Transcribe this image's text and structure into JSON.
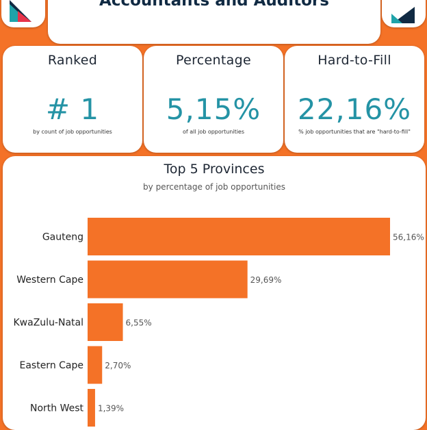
{
  "header": {
    "title": "Accountants and Auditors"
  },
  "stats": [
    {
      "label": "Ranked",
      "value": "# 1",
      "sub": "by count of job opportunities"
    },
    {
      "label": "Percentage",
      "value": "5,15%",
      "sub": "of all job opportunities"
    },
    {
      "label": "Hard-to-Fill",
      "value": "22,16%",
      "sub": "% job opportunities that are \"hard-to-fill\""
    }
  ],
  "colors": {
    "background": "#f47227",
    "bar": "#f47227",
    "value_text": "#2493a5",
    "title_text": "#102a43",
    "logo_teal": "#1fa3a9",
    "logo_navy": "#102a43"
  },
  "chart_data": {
    "type": "bar",
    "orientation": "horizontal",
    "title": "Top 5 Provinces",
    "subtitle": "by percentage of job opportunities",
    "categories": [
      "Gauteng",
      "Western Cape",
      "KwaZulu-Natal",
      "Eastern Cape",
      "North West"
    ],
    "values": [
      56.16,
      29.69,
      6.55,
      2.7,
      1.39
    ],
    "value_labels": [
      "56,16%",
      "29,69%",
      "6,55%",
      "2,70%",
      "1,39%"
    ],
    "xlim": [
      0,
      56.16
    ],
    "grid": false,
    "legend": false
  }
}
